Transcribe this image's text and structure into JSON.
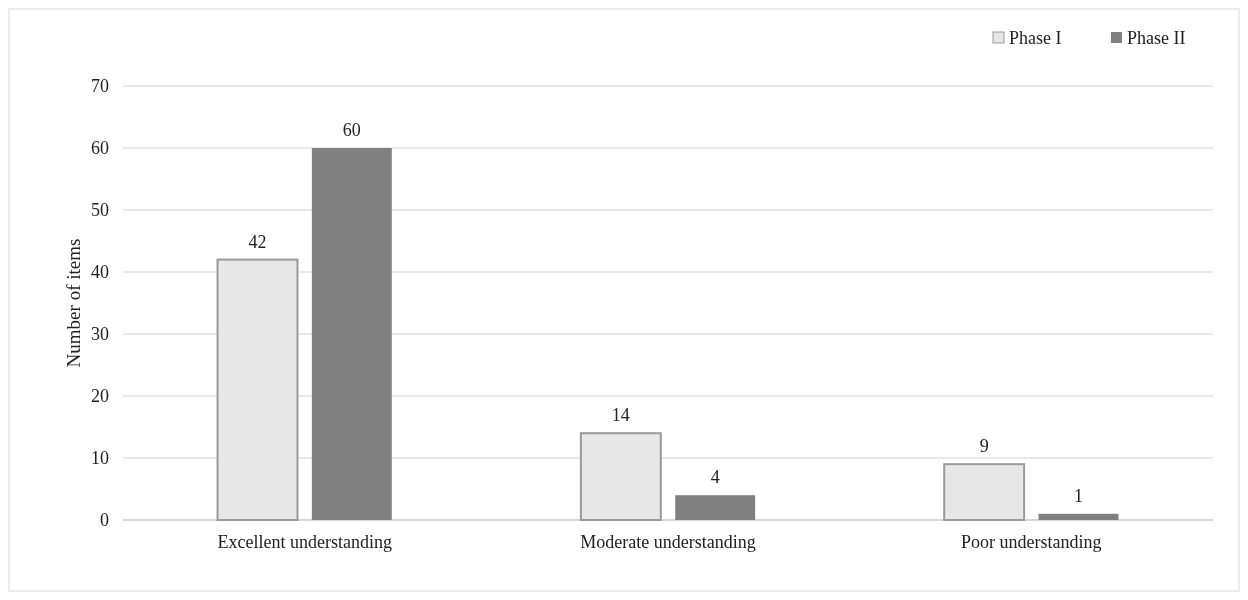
{
  "chart_data": {
    "type": "bar",
    "ylabel": "Number of items",
    "categories": [
      "Excellent understanding",
      "Moderate understanding",
      "Poor understanding"
    ],
    "series": [
      {
        "name": "Phase I",
        "color": "#e7e7e7",
        "values": [
          42,
          14,
          9
        ]
      },
      {
        "name": "Phase II",
        "color": "#808080",
        "values": [
          60,
          4,
          1
        ]
      }
    ],
    "ylim": [
      0,
      70
    ],
    "yticks": [
      0,
      10,
      20,
      30,
      40,
      50,
      60,
      70
    ],
    "grid": "y",
    "legend": "top right",
    "data_labels": true
  }
}
